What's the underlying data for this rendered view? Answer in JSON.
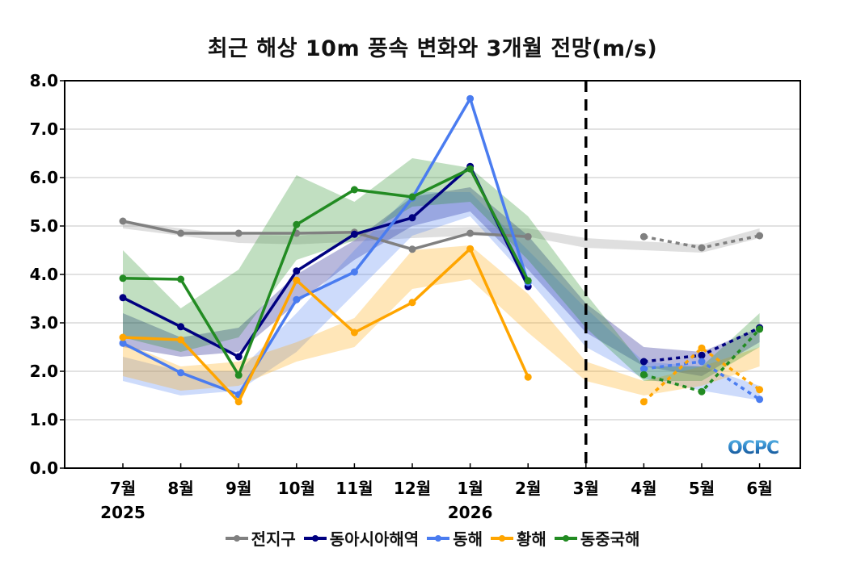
{
  "chart_data": {
    "type": "line",
    "title": "최근 해상 10m 풍속 변화와 3개월 전망(m/s)",
    "xlabel": "",
    "ylabel": "",
    "ylim": [
      0,
      8
    ],
    "yticks": [
      "0.0",
      "1.0",
      "2.0",
      "3.0",
      "4.0",
      "5.0",
      "6.0",
      "7.0",
      "8.0"
    ],
    "categories": [
      "7월",
      "8월",
      "9월",
      "10월",
      "11월",
      "12월",
      "1월",
      "2월",
      "3월",
      "4월",
      "5월",
      "6월"
    ],
    "year_labels": [
      {
        "at": "7월",
        "label": "2025"
      },
      {
        "at": "1월",
        "label": "2026"
      }
    ],
    "forecast_divider_at": "3월",
    "grid": true,
    "legend_position": "bottom",
    "logo_text": "OCPC",
    "series": [
      {
        "name": "전지구",
        "color": "#808080",
        "observed": [
          5.1,
          4.85,
          4.85,
          4.85,
          4.87,
          4.52,
          4.85,
          4.78,
          null,
          null,
          null,
          null
        ],
        "forecast": [
          null,
          null,
          null,
          null,
          null,
          null,
          null,
          null,
          null,
          4.78,
          4.55,
          4.8
        ],
        "band_low": [
          4.95,
          4.8,
          4.65,
          4.62,
          4.68,
          4.75,
          4.8,
          4.78,
          4.55,
          4.5,
          4.45,
          4.75
        ],
        "band_high": [
          5.1,
          4.95,
          4.82,
          4.8,
          4.88,
          4.95,
          4.98,
          4.95,
          4.75,
          4.68,
          4.62,
          4.95
        ]
      },
      {
        "name": "동아시아해역",
        "color": "#000080",
        "observed": [
          3.52,
          2.92,
          2.3,
          4.07,
          4.83,
          5.17,
          6.23,
          3.75,
          null,
          null,
          null,
          null
        ],
        "forecast": [
          null,
          null,
          null,
          null,
          null,
          null,
          null,
          null,
          null,
          2.2,
          2.33,
          2.9
        ],
        "band_low": [
          2.5,
          2.3,
          2.4,
          3.4,
          4.3,
          5.0,
          5.3,
          4.1,
          2.8,
          2.1,
          1.9,
          2.6
        ],
        "band_high": [
          3.2,
          2.7,
          2.9,
          4.0,
          4.7,
          5.6,
          5.8,
          4.8,
          3.4,
          2.5,
          2.4,
          2.9
        ]
      },
      {
        "name": "동해",
        "color": "#4a7cf0",
        "observed": [
          2.58,
          1.97,
          1.52,
          3.48,
          4.05,
          5.58,
          7.63,
          3.83,
          null,
          null,
          null,
          null
        ],
        "forecast": [
          null,
          null,
          null,
          null,
          null,
          null,
          null,
          null,
          null,
          2.05,
          2.2,
          1.42
        ],
        "band_low": [
          1.8,
          1.5,
          1.6,
          2.4,
          3.6,
          4.8,
          5.2,
          3.9,
          2.5,
          1.85,
          1.6,
          1.4
        ],
        "band_high": [
          2.3,
          2.0,
          2.0,
          3.2,
          4.5,
          5.7,
          5.7,
          4.5,
          3.3,
          2.2,
          2.1,
          1.7
        ]
      },
      {
        "name": "황해",
        "color": "#ffa500",
        "observed": [
          2.7,
          2.65,
          1.37,
          3.88,
          2.8,
          3.42,
          4.53,
          1.88,
          null,
          null,
          null,
          null
        ],
        "forecast": [
          null,
          null,
          null,
          null,
          null,
          null,
          null,
          null,
          null,
          1.37,
          2.48,
          1.62
        ],
        "band_low": [
          1.9,
          1.6,
          1.7,
          2.2,
          2.5,
          3.7,
          3.9,
          2.8,
          1.8,
          1.5,
          1.7,
          2.1
        ],
        "band_high": [
          2.6,
          2.1,
          2.2,
          2.6,
          3.1,
          4.5,
          4.6,
          3.6,
          2.2,
          1.8,
          2.1,
          2.5
        ]
      },
      {
        "name": "동중국해",
        "color": "#228b22",
        "observed": [
          3.92,
          3.9,
          1.92,
          5.03,
          5.75,
          5.6,
          6.18,
          3.87,
          null,
          null,
          null,
          null
        ],
        "forecast": [
          null,
          null,
          null,
          null,
          null,
          null,
          null,
          null,
          null,
          1.93,
          1.58,
          2.87
        ],
        "band_low": [
          2.7,
          2.4,
          2.7,
          4.3,
          4.7,
          5.4,
          5.5,
          4.3,
          2.9,
          1.8,
          1.8,
          2.5
        ],
        "band_high": [
          4.5,
          3.3,
          4.1,
          6.05,
          5.5,
          6.4,
          6.2,
          5.2,
          3.6,
          2.1,
          2.1,
          3.2
        ]
      }
    ]
  }
}
